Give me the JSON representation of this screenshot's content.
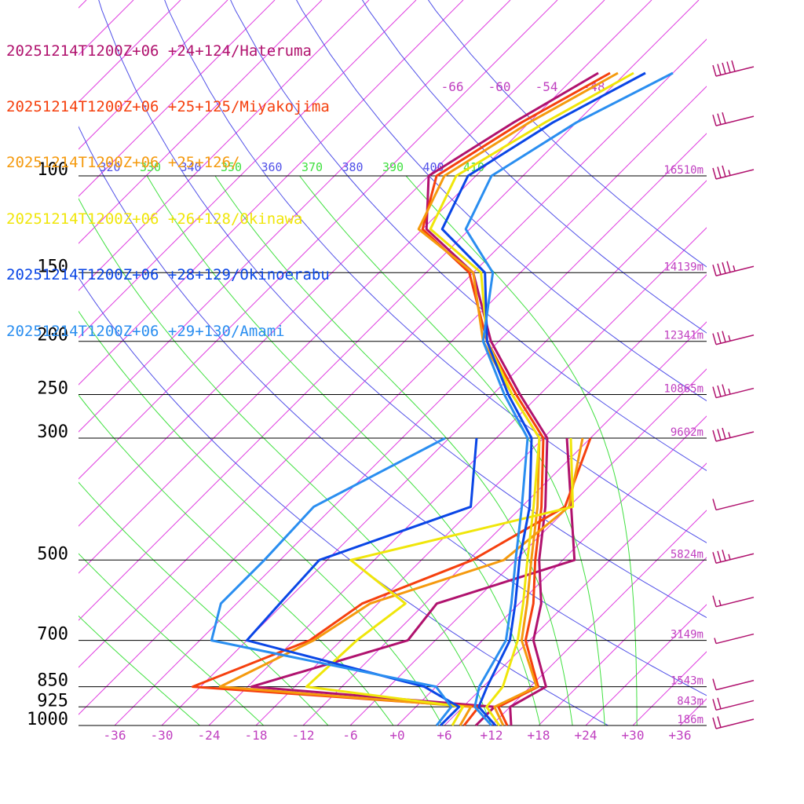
{
  "legend": [
    {
      "label": "20251214T1200Z+06 +24+124/Hateruma",
      "color": "#b0126e"
    },
    {
      "label": "20251214T1200Z+06 +25+125/Miyakojima",
      "color": "#f5400e"
    },
    {
      "label": "20251214T1200Z+06 +25+126/",
      "color": "#f59a0e"
    },
    {
      "label": "20251214T1200Z+06 +26+128/Okinawa",
      "color": "#f0e60a"
    },
    {
      "label": "20251214T1200Z+06 +28+129/Okinoerabu",
      "color": "#0a46e6"
    },
    {
      "label": "20251214T1200Z+06 +29+130/Amami",
      "color": "#2a8ef0"
    }
  ],
  "chart_data": {
    "type": "line",
    "pressure_levels": [
      {
        "p": 100,
        "label": "100",
        "height": "16510m"
      },
      {
        "p": 150,
        "label": "150",
        "height": "14139m"
      },
      {
        "p": 200,
        "label": "200",
        "height": "12341m"
      },
      {
        "p": 250,
        "label": "250",
        "height": "10865m"
      },
      {
        "p": 300,
        "label": "300",
        "height": "9602m"
      },
      {
        "p": 500,
        "label": "500",
        "height": "5824m"
      },
      {
        "p": 700,
        "label": "700",
        "height": "3149m"
      },
      {
        "p": 850,
        "label": "850",
        "height": "1543m"
      },
      {
        "p": 925,
        "label": "925",
        "height": "843m"
      },
      {
        "p": 1000,
        "label": "1000",
        "height": "186m"
      }
    ],
    "temperature_ticks": [
      "-36",
      "-30",
      "-24",
      "-18",
      "-12",
      "-6",
      "+0",
      "+6",
      "+12",
      "+18",
      "+24",
      "+30",
      "+36"
    ],
    "isotherm_upper_labels": [
      "-66",
      "-60",
      "-54",
      "-48"
    ],
    "theta_labels": [
      "320",
      "330",
      "340",
      "350",
      "360",
      "370",
      "380",
      "390",
      "400",
      "410"
    ],
    "theta_label_colors": [
      "#5050e8",
      "#40e040",
      "#5050e8",
      "#40e040",
      "#5050e8",
      "#40e040",
      "#5050e8",
      "#40e040",
      "#5050e8",
      "#40e040"
    ],
    "colors": {
      "isotherm": "#e040e0",
      "dry_adiabat": "#5050e8",
      "moist_adiabat": "#40e040",
      "isobar": "#000000",
      "label_magenta": "#c040c0",
      "wind_barb": "#b0126e"
    },
    "series": [
      {
        "name": "20251214T1200Z+06 +24+124/Hateruma",
        "color": "#b0126e",
        "temperature": [
          [
            1000,
            14.5
          ],
          [
            925,
            12.0
          ],
          [
            850,
            14.0
          ],
          [
            700,
            6.5
          ],
          [
            600,
            2.8
          ],
          [
            500,
            -3.0
          ],
          [
            400,
            -9.0
          ],
          [
            300,
            -17.5
          ],
          [
            250,
            -26.5
          ],
          [
            200,
            -37.0
          ],
          [
            150,
            -48.0
          ],
          [
            125,
            -59.5
          ],
          [
            100,
            -66.0
          ],
          [
            80,
            -62.0
          ],
          [
            65,
            -57.5
          ]
        ],
        "dewpoint": [
          [
            1000,
            10.0
          ],
          [
            925,
            10.0
          ],
          [
            850,
            -23.5
          ],
          [
            700,
            -9.5
          ],
          [
            600,
            -10.5
          ],
          [
            500,
            1.5
          ],
          [
            300,
            -15.0
          ]
        ]
      },
      {
        "name": "20251214T1200Z+06 +25+125/Miyakojima",
        "color": "#f5400e",
        "temperature": [
          [
            1000,
            14.0
          ],
          [
            925,
            10.5
          ],
          [
            850,
            13.0
          ],
          [
            700,
            5.5
          ],
          [
            600,
            1.8
          ],
          [
            500,
            -3.5
          ],
          [
            400,
            -9.5
          ],
          [
            300,
            -18.0
          ],
          [
            250,
            -27.0
          ],
          [
            200,
            -37.5
          ],
          [
            150,
            -48.5
          ],
          [
            125,
            -60.0
          ],
          [
            100,
            -65.0
          ],
          [
            80,
            -61.0
          ],
          [
            65,
            -56.0
          ]
        ],
        "dewpoint": [
          [
            1000,
            8.5
          ],
          [
            925,
            8.0
          ],
          [
            850,
            -31.0
          ],
          [
            700,
            -22.0
          ],
          [
            600,
            -20.0
          ],
          [
            500,
            -11.5
          ],
          [
            400,
            -6.5
          ],
          [
            300,
            -12.0
          ]
        ]
      },
      {
        "name": "20251214T1200Z+06 +25+126/",
        "color": "#f59a0e",
        "temperature": [
          [
            1000,
            13.5
          ],
          [
            925,
            10.0
          ],
          [
            850,
            12.8
          ],
          [
            700,
            5.0
          ],
          [
            600,
            1.0
          ],
          [
            500,
            -4.0
          ],
          [
            400,
            -10.0
          ],
          [
            300,
            -18.5
          ],
          [
            250,
            -27.5
          ],
          [
            200,
            -38.0
          ],
          [
            150,
            -48.0
          ],
          [
            125,
            -60.5
          ],
          [
            100,
            -64.0
          ],
          [
            80,
            -60.0
          ],
          [
            65,
            -55.0
          ]
        ],
        "dewpoint": [
          [
            1000,
            8.0
          ],
          [
            925,
            7.0
          ],
          [
            850,
            -27.5
          ],
          [
            700,
            -21.5
          ],
          [
            600,
            -19.0
          ],
          [
            500,
            -7.5
          ],
          [
            400,
            -6.0
          ],
          [
            300,
            -13.0
          ]
        ]
      },
      {
        "name": "20251214T1200Z+06 +26+128/Okinawa",
        "color": "#f0e60a",
        "temperature": [
          [
            1000,
            13.0
          ],
          [
            925,
            9.0
          ],
          [
            850,
            8.5
          ],
          [
            700,
            4.5
          ],
          [
            600,
            0.5
          ],
          [
            500,
            -4.5
          ],
          [
            400,
            -10.5
          ],
          [
            300,
            -18.5
          ],
          [
            250,
            -27.5
          ],
          [
            200,
            -37.5
          ],
          [
            150,
            -47.0
          ],
          [
            125,
            -59.0
          ],
          [
            100,
            -62.5
          ],
          [
            80,
            -58.0
          ],
          [
            65,
            -53.0
          ]
        ],
        "dewpoint": [
          [
            1000,
            7.0
          ],
          [
            925,
            6.0
          ],
          [
            850,
            -16.5
          ],
          [
            700,
            -16.0
          ],
          [
            600,
            -14.5
          ],
          [
            500,
            -27.0
          ],
          [
            400,
            -5.5
          ],
          [
            300,
            -14.5
          ]
        ]
      },
      {
        "name": "20251214T1200Z+06 +28+129/Okinoerabu",
        "color": "#0a46e6",
        "temperature": [
          [
            1000,
            12.5
          ],
          [
            925,
            8.0
          ],
          [
            850,
            6.5
          ],
          [
            700,
            3.5
          ],
          [
            600,
            -0.5
          ],
          [
            500,
            -5.5
          ],
          [
            400,
            -11.0
          ],
          [
            300,
            -19.5
          ],
          [
            250,
            -28.0
          ],
          [
            200,
            -37.5
          ],
          [
            150,
            -46.5
          ],
          [
            125,
            -57.5
          ],
          [
            100,
            -61.0
          ],
          [
            80,
            -57.0
          ],
          [
            65,
            -51.5
          ]
        ],
        "dewpoint": [
          [
            1000,
            5.5
          ],
          [
            925,
            5.5
          ],
          [
            850,
            -1.5
          ],
          [
            700,
            -30.0
          ],
          [
            600,
            -30.5
          ],
          [
            500,
            -31.0
          ],
          [
            400,
            -18.5
          ],
          [
            300,
            -26.5
          ]
        ]
      },
      {
        "name": "20251214T1200Z+06 +29+130/Amami",
        "color": "#2a8ef0",
        "temperature": [
          [
            1000,
            12.0
          ],
          [
            925,
            7.5
          ],
          [
            850,
            5.5
          ],
          [
            700,
            3.0
          ],
          [
            600,
            -1.0
          ],
          [
            500,
            -6.0
          ],
          [
            400,
            -12.0
          ],
          [
            300,
            -20.0
          ],
          [
            250,
            -28.5
          ],
          [
            200,
            -38.0
          ],
          [
            150,
            -45.5
          ],
          [
            125,
            -54.5
          ],
          [
            100,
            -58.0
          ],
          [
            80,
            -54.0
          ],
          [
            65,
            -48.0
          ]
        ],
        "dewpoint": [
          [
            1000,
            5.0
          ],
          [
            925,
            4.5
          ],
          [
            850,
            0.0
          ],
          [
            700,
            -34.5
          ],
          [
            600,
            -38.0
          ],
          [
            500,
            -38.0
          ],
          [
            400,
            -38.5
          ],
          [
            300,
            -30.5
          ]
        ]
      }
    ],
    "wind_barbs": [
      {
        "p": 65,
        "speed_kt": 50
      },
      {
        "p": 80,
        "speed_kt": 30
      },
      {
        "p": 100,
        "speed_kt": 35
      },
      {
        "p": 150,
        "speed_kt": 45
      },
      {
        "p": 200,
        "speed_kt": 35
      },
      {
        "p": 250,
        "speed_kt": 35
      },
      {
        "p": 300,
        "speed_kt": 35
      },
      {
        "p": 400,
        "speed_kt": 10
      },
      {
        "p": 500,
        "speed_kt": 35
      },
      {
        "p": 600,
        "speed_kt": 15
      },
      {
        "p": 700,
        "speed_kt": 5
      },
      {
        "p": 850,
        "speed_kt": 10
      },
      {
        "p": 925,
        "speed_kt": 20
      },
      {
        "p": 1000,
        "speed_kt": 20
      }
    ]
  }
}
